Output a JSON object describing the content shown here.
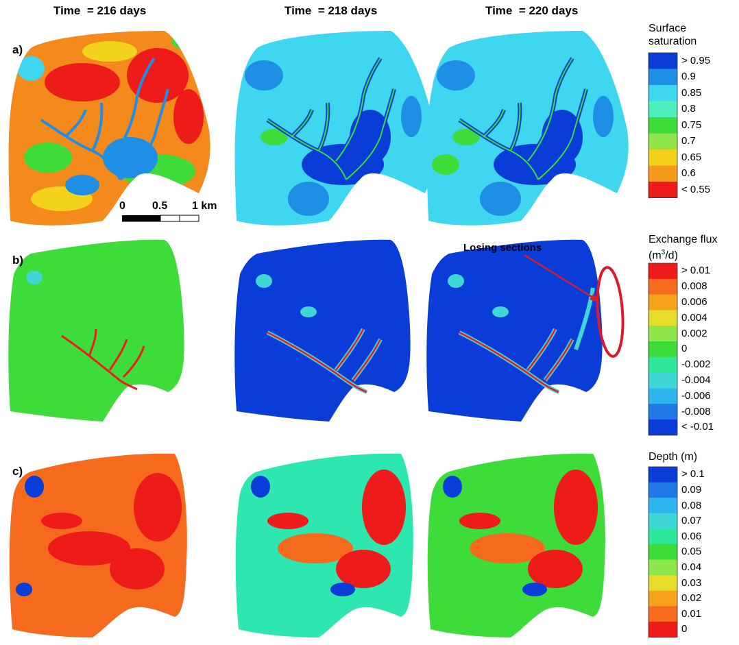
{
  "columns": [
    "Time  = 216 days",
    "Time  = 218 days",
    "Time  = 220 days"
  ],
  "rows": [
    {
      "label": "a)",
      "legend_title": [
        "Surface",
        "saturation"
      ],
      "legend_labels": [
        "> 0.95",
        "0.9",
        "0.85",
        "0.8",
        "0.75",
        "0.7",
        "0.65",
        "0.6",
        "< 0.55"
      ],
      "legend_colors": [
        "#0a3dd8",
        "#1f8fe6",
        "#3fd6f0",
        "#4ef0bb",
        "#3ddc3a",
        "#8fe64a",
        "#f3d21c",
        "#f59a1c",
        "#ee1b1b"
      ]
    },
    {
      "label": "b)",
      "legend_title_line1": "Exchange flux",
      "legend_title_line2_pre": "(m",
      "legend_title_sup": "3",
      "legend_title_line2_post": "/d)",
      "legend_labels": [
        "> 0.01",
        "0.008",
        "0.006",
        "0.004",
        "0.002",
        "0",
        "-0.002",
        "-0.004",
        "-0.006",
        "-0.008",
        "< -0.01"
      ],
      "legend_colors": [
        "#ee1b1b",
        "#f56a1c",
        "#f5a21c",
        "#e6dc2a",
        "#8fe64a",
        "#3ddc3a",
        "#2ee699",
        "#3fd6d6",
        "#2fb6ee",
        "#1f78e6",
        "#0a3dd8"
      ]
    },
    {
      "label": "c)",
      "legend_title": [
        "Depth (m)"
      ],
      "legend_labels": [
        "> 0.1",
        "0.09",
        "0.08",
        "0.07",
        "0.06",
        "0.05",
        "0.04",
        "0.03",
        "0.02",
        "0.01",
        "0"
      ],
      "legend_colors": [
        "#0a3dd8",
        "#1f78e6",
        "#2fb6ee",
        "#3fd6d6",
        "#2ee699",
        "#3ddc3a",
        "#8fe64a",
        "#e6dc2a",
        "#f5a21c",
        "#f56a1c",
        "#ee1b1b"
      ]
    }
  ],
  "scale_bar": {
    "labels": [
      "0",
      "0.5",
      "1 km"
    ]
  },
  "annotation": {
    "text": "Losing sections",
    "color": "#d81b2e"
  }
}
